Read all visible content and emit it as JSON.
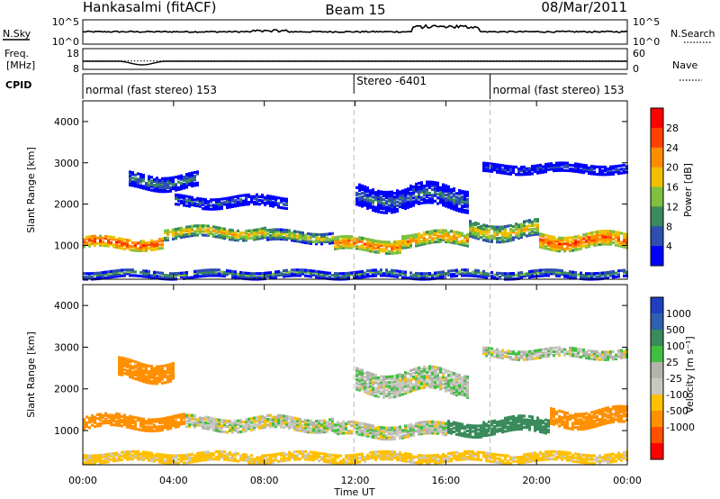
{
  "header": {
    "radar": "Hankasalmi (fitACF)",
    "beam": "Beam 15",
    "date": "08/Mar/2011"
  },
  "top_panels": {
    "nsky": {
      "label": "N.Sky",
      "ticks": [
        "10^5",
        "10^0"
      ]
    },
    "freq": {
      "label_line1": "Freq.",
      "label_line2": "[MHz]",
      "ticks": [
        "18",
        "8"
      ]
    },
    "nsearch": {
      "label": "N.Search",
      "ticks": [
        "10^5",
        "10^0"
      ]
    },
    "nave": {
      "label": "Nave",
      "ticks": [
        "60",
        "0"
      ]
    },
    "cpid": {
      "label": "CPID",
      "segments": [
        {
          "start_hour": 0.0,
          "end_hour": 11.95,
          "text": "normal (fast stereo) 153"
        },
        {
          "start_hour": 11.95,
          "end_hour": 17.95,
          "text": "Stereo -6401"
        },
        {
          "start_hour": 17.95,
          "end_hour": 24.0,
          "text": "normal (fast stereo) 153"
        }
      ]
    }
  },
  "xaxis": {
    "label": "Time UT",
    "ticks": [
      "00:00",
      "04:00",
      "08:00",
      "12:00",
      "16:00",
      "20:00",
      "00:00"
    ]
  },
  "colors": {
    "power": [
      "#0000ff",
      "#2c4fb0",
      "#3a8a5c",
      "#7fc040",
      "#f0c000",
      "#ff8c00",
      "#ff4000",
      "#ff0000"
    ],
    "velocity": [
      "#ff0000",
      "#ff5000",
      "#ff9000",
      "#ffc000",
      "#c8c8c0",
      "#b4b4aa",
      "#40c040",
      "#3a8a5c",
      "#3060b0",
      "#2040c0"
    ]
  },
  "chart_data": [
    {
      "type": "heatmap",
      "name": "power",
      "ylabel": "Slant Range [km]",
      "ylim": [
        180,
        4500
      ],
      "yticks": [
        1000,
        2000,
        3000,
        4000
      ],
      "xlim": [
        0,
        24
      ],
      "colorbar": {
        "label": "Power [dB]",
        "ticks": [
          4,
          8,
          12,
          16,
          20,
          24,
          28
        ],
        "range": [
          0,
          32
        ]
      },
      "bands": [
        {
          "t0": 0.0,
          "t1": 3.5,
          "center": 1100,
          "width": 260,
          "level": 27
        },
        {
          "t0": 3.5,
          "t1": 8.0,
          "center": 1350,
          "width": 260,
          "level": 20
        },
        {
          "t0": 8.0,
          "t1": 11.0,
          "center": 1250,
          "width": 240,
          "level": 17
        },
        {
          "t0": 11.0,
          "t1": 14.0,
          "center": 1050,
          "width": 280,
          "level": 25
        },
        {
          "t0": 14.0,
          "t1": 17.0,
          "center": 1200,
          "width": 300,
          "level": 23
        },
        {
          "t0": 17.0,
          "t1": 20.0,
          "center": 1400,
          "width": 380,
          "level": 19
        },
        {
          "t0": 20.0,
          "t1": 24.0,
          "center": 1150,
          "width": 340,
          "level": 26
        },
        {
          "t0": 2.0,
          "t1": 5.0,
          "center": 2600,
          "width": 350,
          "level": 10
        },
        {
          "t0": 4.0,
          "t1": 9.0,
          "center": 2100,
          "width": 250,
          "level": 7
        },
        {
          "t0": 12.0,
          "t1": 17.0,
          "center": 2200,
          "width": 500,
          "level": 9
        },
        {
          "t0": 17.5,
          "t1": 24.0,
          "center": 2900,
          "width": 200,
          "level": 6
        },
        {
          "t0": 0.0,
          "t1": 24.0,
          "center": 350,
          "width": 180,
          "level": 11
        }
      ]
    },
    {
      "type": "heatmap",
      "name": "velocity",
      "ylabel": "Slant Range [km]",
      "ylim": [
        180,
        4500
      ],
      "yticks": [
        1000,
        2000,
        3000,
        4000
      ],
      "xlim": [
        0,
        24
      ],
      "colorbar": {
        "label": "Velocity [m s⁻¹]",
        "ticks": [
          "1000",
          "500",
          "100",
          "25",
          "-25",
          "-100",
          "-500",
          "-1000"
        ]
      },
      "bands": [
        {
          "t0": 0.0,
          "t1": 4.5,
          "center": 1250,
          "width": 300,
          "level": -300
        },
        {
          "t0": 4.5,
          "t1": 11.0,
          "center": 1200,
          "width": 280,
          "level": 0
        },
        {
          "t0": 11.0,
          "t1": 16.0,
          "center": 1050,
          "width": 300,
          "level": 5
        },
        {
          "t0": 16.0,
          "t1": 17.5,
          "center": 1100,
          "width": 300,
          "level": 150
        },
        {
          "t0": 17.5,
          "t1": 20.5,
          "center": 1150,
          "width": 320,
          "level": 200
        },
        {
          "t0": 20.5,
          "t1": 24.0,
          "center": 1350,
          "width": 380,
          "level": -200
        },
        {
          "t0": 1.5,
          "t1": 4.0,
          "center": 2500,
          "width": 450,
          "level": -400
        },
        {
          "t0": 12.0,
          "t1": 17.0,
          "center": 2200,
          "width": 500,
          "level": 10
        },
        {
          "t0": 17.5,
          "t1": 24.0,
          "center": 2900,
          "width": 220,
          "level": 5
        },
        {
          "t0": 0.0,
          "t1": 24.0,
          "center": 400,
          "width": 200,
          "level": -50
        }
      ]
    }
  ]
}
